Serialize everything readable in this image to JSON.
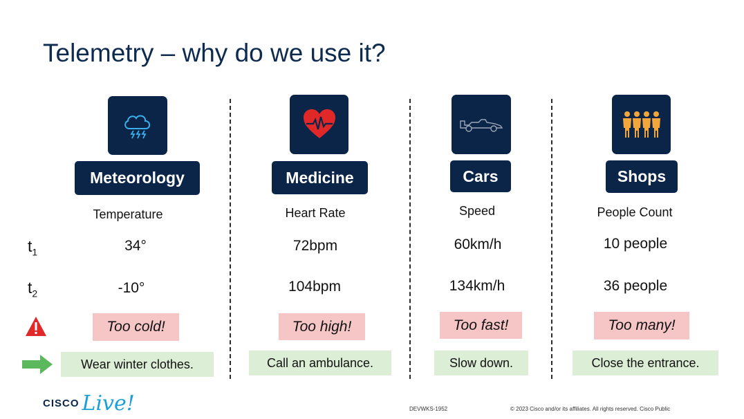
{
  "slide": {
    "title": "Telemetry – why do we use it?"
  },
  "rows": {
    "t1": {
      "base": "t",
      "sub": "1"
    },
    "t2": {
      "base": "t",
      "sub": "2"
    },
    "alert_icon": "warning-triangle-icon",
    "action_icon": "right-arrow-icon"
  },
  "columns": [
    {
      "category": "Meteorology",
      "icon": "storm-cloud-icon",
      "metric": "Temperature",
      "t1": "34°",
      "t2": "-10°",
      "alert": "Too cold!",
      "action": "Wear winter clothes."
    },
    {
      "category": "Medicine",
      "icon": "heart-rate-icon",
      "metric": "Heart Rate",
      "t1": "72bpm",
      "t2": "104bpm",
      "alert": "Too high!",
      "action": "Call an ambulance."
    },
    {
      "category": "Cars",
      "icon": "race-car-icon",
      "metric": "Speed",
      "t1": "60km/h",
      "t2": "134km/h",
      "alert": "Too fast!",
      "action": "Slow down."
    },
    {
      "category": "Shops",
      "icon": "people-group-icon",
      "metric": "People Count",
      "t1": "10 people",
      "t2": "36 people",
      "alert": "Too many!",
      "action": "Close the entrance."
    }
  ],
  "footer": {
    "logo_text": "CISCO",
    "logo_script": "Live!",
    "session_code": "DEVWKS-1952",
    "copyright": "© 2023  Cisco and/or its affiliates. All rights reserved.   Cisco Public"
  },
  "colors": {
    "title": "#0d2a4f",
    "box": "#0b2548",
    "alert_bg": "#f6c6c6",
    "action_bg": "#dcefd6",
    "accent_red": "#e02828",
    "accent_orange": "#f3a63b",
    "accent_green": "#5cb85c",
    "accent_blue": "#1aa0d8"
  }
}
